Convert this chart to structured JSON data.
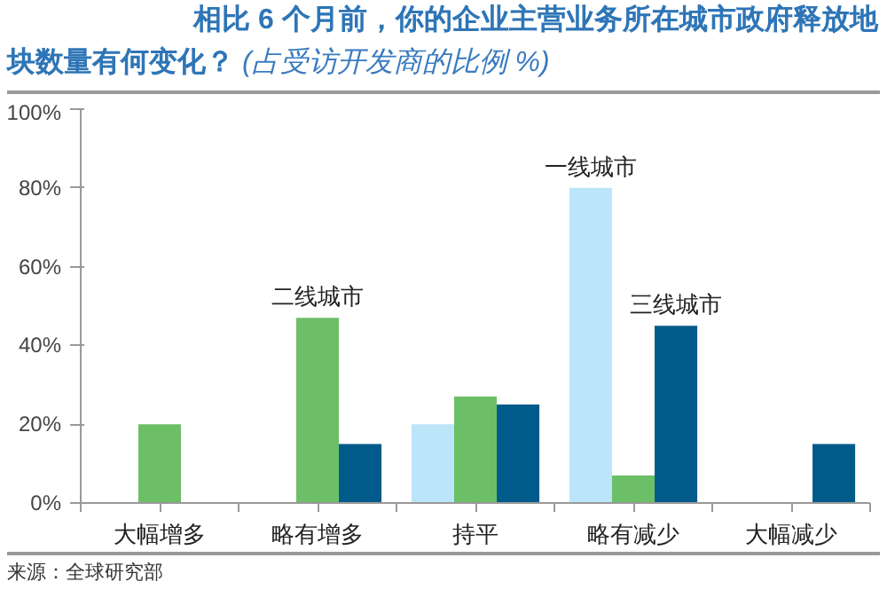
{
  "chart_data": {
    "type": "bar",
    "title": "相比 6 个月前，你的企业主营业务所在城市政府释放地块数量有何变化？",
    "subtitle": "(占受访开发商的比例 %)",
    "categories": [
      "大幅增多",
      "略有增多",
      "持平",
      "略有减少",
      "大幅减少"
    ],
    "series": [
      {
        "name": "一线城市",
        "color": "#bde5fa",
        "values": [
          0,
          0,
          20,
          80,
          0
        ]
      },
      {
        "name": "二线城市",
        "color": "#6dbf67",
        "values": [
          20,
          47,
          27,
          7,
          0
        ]
      },
      {
        "name": "三线城市",
        "color": "#005a8a",
        "values": [
          0,
          15,
          25,
          45,
          15
        ]
      }
    ],
    "ylim": [
      0,
      100
    ],
    "yticks": [
      {
        "value": 0,
        "label": "0%"
      },
      {
        "value": 20,
        "label": "20%"
      },
      {
        "value": 40,
        "label": "40%"
      },
      {
        "value": 60,
        "label": "60%"
      },
      {
        "value": 80,
        "label": "80%"
      },
      {
        "value": 100,
        "label": "100%"
      }
    ],
    "grid": false,
    "annotations": [
      "来源：全球研究部"
    ]
  }
}
